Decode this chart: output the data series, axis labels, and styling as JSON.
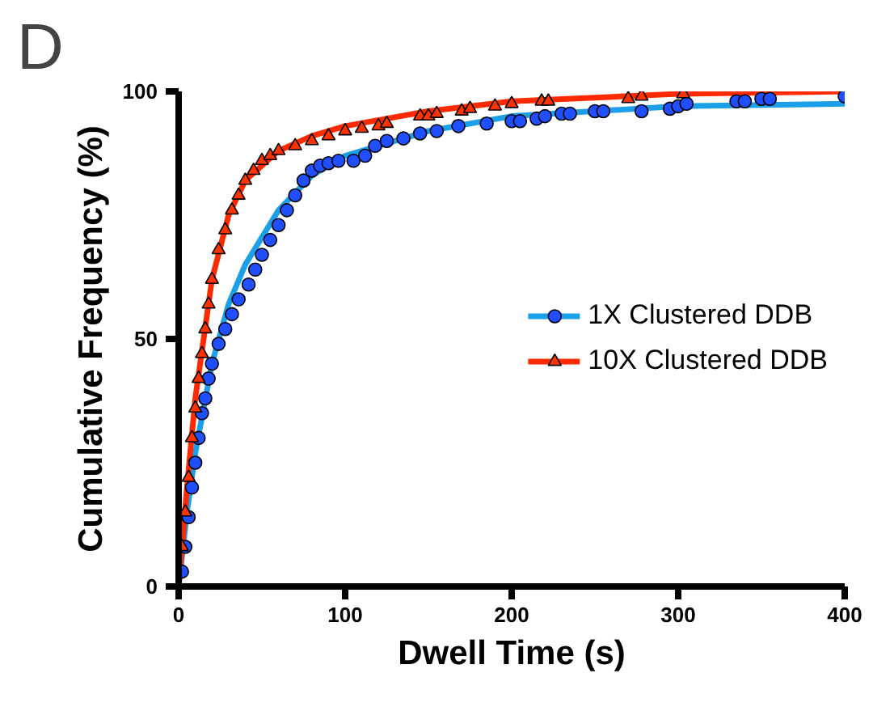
{
  "chart_data": {
    "type": "scatter",
    "xlabel": "Dwell Time (s)",
    "ylabel": "Cumulative Frequency (%)",
    "annotations": [
      "D"
    ],
    "xlim": [
      0,
      400
    ],
    "xticks": [
      0,
      100,
      200,
      300,
      400
    ],
    "ylim": [
      0,
      100
    ],
    "yticks": [
      0,
      50,
      100
    ],
    "grid": false,
    "legend": "right",
    "series": [
      {
        "name": "1X Clustered DDB",
        "marker": "circle",
        "color": "#1f4fff",
        "x": [
          2,
          4,
          6,
          8,
          10,
          12,
          14,
          16,
          18,
          20,
          24,
          28,
          32,
          36,
          42,
          46,
          50,
          55,
          60,
          65,
          70,
          75,
          80,
          85,
          90,
          96,
          105,
          112,
          118,
          125,
          135,
          145,
          155,
          168,
          185,
          200,
          205,
          215,
          220,
          230,
          235,
          250,
          255,
          278,
          295,
          300,
          305,
          335,
          340,
          350,
          355,
          400
        ],
        "values": [
          3,
          8,
          14,
          20,
          25,
          30,
          35,
          38,
          42,
          45,
          49,
          52,
          55,
          58,
          61,
          64,
          67,
          70,
          73,
          76,
          79,
          82,
          84,
          85,
          85.5,
          86,
          86,
          87,
          89,
          90,
          90.5,
          91.5,
          92,
          93,
          93.5,
          94,
          94,
          94.5,
          95,
          95.5,
          95.5,
          96,
          96,
          96,
          96.5,
          97,
          97.5,
          98,
          98,
          98.5,
          98.5,
          99
        ]
      },
      {
        "type": "line",
        "marker": "none",
        "color": "#1a9fe8",
        "x": [
          0,
          5,
          10,
          20,
          30,
          40,
          60,
          80,
          100,
          150,
          200,
          300,
          400
        ],
        "values": [
          0,
          15,
          27,
          45,
          57,
          65,
          76,
          83,
          87,
          92,
          95,
          97,
          97.5
        ]
      },
      {
        "name": "10X Clustered DDB",
        "marker": "triangle",
        "color": "#ff3300",
        "x": [
          2,
          4,
          6,
          8,
          10,
          12,
          14,
          16,
          18,
          20,
          24,
          28,
          32,
          36,
          40,
          45,
          50,
          55,
          60,
          70,
          80,
          90,
          100,
          110,
          120,
          125,
          145,
          150,
          155,
          170,
          175,
          190,
          200,
          218,
          222,
          270,
          278,
          303
        ],
        "values": [
          8,
          15,
          22,
          30,
          36,
          42,
          47,
          52,
          57,
          62,
          68,
          72,
          76,
          79,
          82,
          84,
          86,
          87,
          88,
          89,
          90,
          91,
          92,
          92.5,
          93,
          93.5,
          95,
          95,
          95.5,
          96,
          96.5,
          97,
          97.5,
          98,
          98,
          98.5,
          99,
          99.5
        ]
      },
      {
        "type": "line",
        "marker": "none",
        "color": "#ff2a00",
        "x": [
          0,
          5,
          10,
          20,
          30,
          40,
          60,
          80,
          100,
          150,
          200,
          300,
          400
        ],
        "values": [
          0,
          20,
          38,
          62,
          75,
          82,
          88,
          91,
          93,
          96,
          98,
          99.5,
          100
        ]
      }
    ]
  }
}
